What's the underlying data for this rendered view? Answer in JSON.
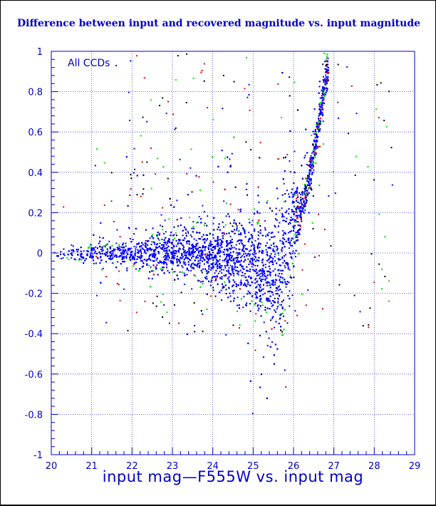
{
  "chart_data": {
    "type": "scatter",
    "title": "Difference between input and recovered magnitude vs. input magnitude",
    "xlabel": "input mag—F555W vs. input mag",
    "ylabel": "",
    "annotation": "All CCDs",
    "xlim": [
      20,
      29
    ],
    "ylim": [
      -1,
      1
    ],
    "xticks": [
      "20",
      "21",
      "22",
      "23",
      "24",
      "25",
      "26",
      "27",
      "28",
      "29"
    ],
    "yticks": [
      "1",
      "0.8",
      "0.6",
      "0.4",
      "0.2",
      "0",
      "-0.2",
      "-0.4",
      "-0.6",
      "-0.8",
      "-1"
    ],
    "grid": true,
    "legend": "none",
    "colors": {
      "axis": "#0000cc",
      "grid": "#3333cc",
      "title": "#0000cc",
      "main_series": "#0000ff",
      "scatter_colors": [
        "#00dd00",
        "#0000ff",
        "#dd0000",
        "#000000"
      ]
    },
    "envelope": {
      "description_x": [
        20,
        21,
        22,
        23,
        24,
        25,
        25.5,
        25.8,
        26.0,
        26.2,
        26.5,
        26.8
      ],
      "core_upper": [
        0.02,
        0.05,
        0.08,
        0.12,
        0.16,
        0.22,
        0.3,
        0.4,
        0.45,
        0.3,
        0.6,
        1.0
      ],
      "core_lower": [
        -0.02,
        -0.05,
        -0.08,
        -0.12,
        -0.18,
        -0.3,
        -0.45,
        -0.4,
        -0.1,
        0.15,
        0.4,
        0.8
      ]
    }
  }
}
